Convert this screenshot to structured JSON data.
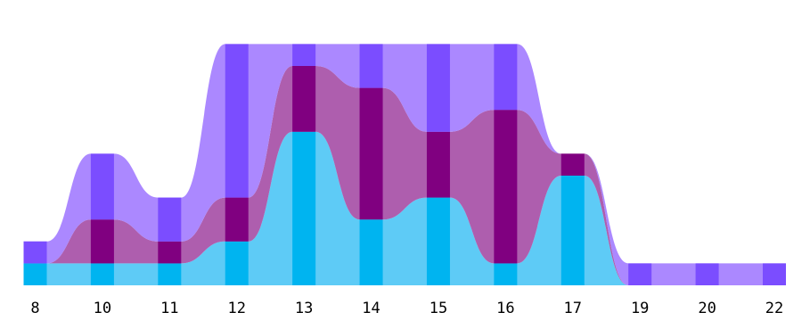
{
  "chart_data": {
    "type": "stacked-bump-area",
    "categories": [
      "8",
      "10",
      "11",
      "12",
      "13",
      "14",
      "15",
      "16",
      "17",
      "19",
      "20",
      "22"
    ],
    "y_unit": 1,
    "ylim": [
      0,
      11
    ],
    "grid": false,
    "legend": "none",
    "series": [
      {
        "color": "#00b4f0",
        "fill": "#55c8f5",
        "values": [
          1,
          1,
          1,
          2,
          7,
          3,
          4,
          1,
          5,
          0,
          0,
          0
        ]
      },
      {
        "color": "#800080",
        "fill": "#aa55aa",
        "values": [
          0,
          2,
          1,
          2,
          3,
          6,
          3,
          7,
          1,
          0,
          0,
          0
        ]
      },
      {
        "color": "#7b4dff",
        "fill": "#a782ff",
        "values": [
          1,
          3,
          2,
          7,
          1,
          2,
          4,
          3,
          0,
          1,
          1,
          1
        ]
      }
    ]
  }
}
